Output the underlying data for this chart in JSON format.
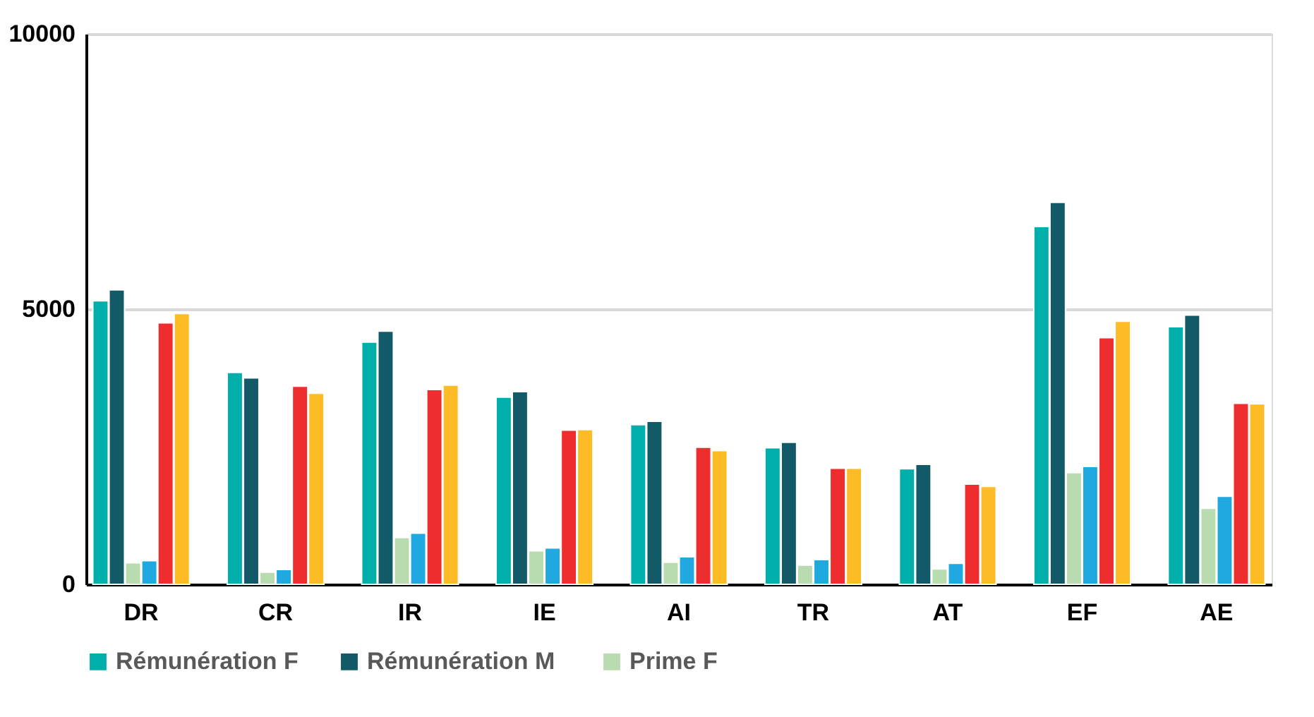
{
  "chart_data": {
    "type": "bar",
    "categories": [
      "DR",
      "CR",
      "IR",
      "IE",
      "AI",
      "TR",
      "AT",
      "EF",
      "AE"
    ],
    "series": [
      {
        "name": "Rémunération F",
        "color": "#00aeaa",
        "values": [
          5150,
          3850,
          4400,
          3400,
          2900,
          2480,
          2100,
          6500,
          4680
        ]
      },
      {
        "name": "Rémunération  M",
        "color": "#125a68",
        "values": [
          5350,
          3750,
          4600,
          3500,
          2960,
          2580,
          2180,
          6940,
          4890
        ]
      },
      {
        "name": "Prime F",
        "color": "#b8dcb0",
        "values": [
          390,
          220,
          850,
          610,
          400,
          350,
          280,
          2030,
          1380
        ]
      },
      {
        "color": "#20a9e0",
        "values": [
          430,
          270,
          930,
          660,
          500,
          450,
          380,
          2140,
          1600
        ]
      },
      {
        "color": "#ee2e2e",
        "values": [
          4750,
          3600,
          3540,
          2800,
          2490,
          2110,
          1820,
          4480,
          3290
        ]
      },
      {
        "color": "#fdbb26",
        "values": [
          4920,
          3470,
          3620,
          2810,
          2430,
          2110,
          1780,
          4780,
          3280
        ]
      }
    ],
    "ylim": [
      0,
      10000
    ],
    "yticks": [
      0,
      5000,
      10000
    ],
    "grid": "y",
    "legend": "bottom"
  }
}
